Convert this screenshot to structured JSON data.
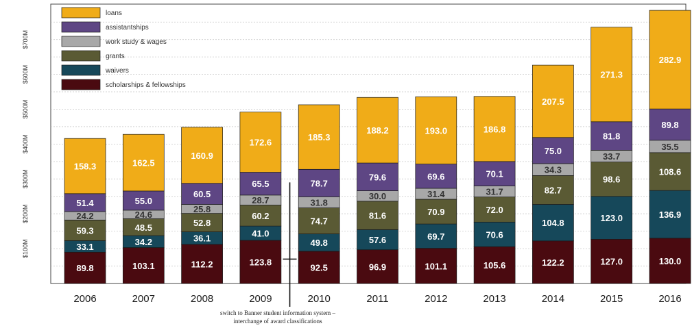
{
  "chart_data": {
    "type": "bar",
    "stacked": true,
    "title": "",
    "xlabel": "",
    "ylabel": "",
    "categories": [
      "2006",
      "2007",
      "2008",
      "2009",
      "2010",
      "2011",
      "2012",
      "2013",
      "2014",
      "2015",
      "2016"
    ],
    "y_ticks": [
      "$100M",
      "$200M",
      "$300M",
      "$400M",
      "$500M",
      "$600M",
      "$700M"
    ],
    "y_tick_values": [
      100,
      200,
      300,
      400,
      500,
      600,
      700
    ],
    "ylim": [
      0,
      780
    ],
    "grid": true,
    "legend_position": "top-left",
    "series": [
      {
        "name": "scholarships & fellowships",
        "color": "#4a0a10",
        "values": [
          89.8,
          103.1,
          112.2,
          123.8,
          92.5,
          96.9,
          101.1,
          105.6,
          122.2,
          127.0,
          130.0
        ]
      },
      {
        "name": "waivers",
        "color": "#16485a",
        "values": [
          33.1,
          34.2,
          36.1,
          41.0,
          49.8,
          57.6,
          69.7,
          70.6,
          104.8,
          123.0,
          136.9
        ]
      },
      {
        "name": "grants",
        "color": "#5a5a34",
        "values": [
          59.3,
          48.5,
          52.8,
          60.2,
          74.7,
          81.6,
          70.9,
          72.0,
          82.7,
          98.6,
          108.6
        ]
      },
      {
        "name": "work study & wages",
        "color": "#a8a8a8",
        "values": [
          24.2,
          24.6,
          25.8,
          28.7,
          31.8,
          30.0,
          31.4,
          31.7,
          34.3,
          33.7,
          35.5
        ]
      },
      {
        "name": "assistantships",
        "color": "#5e4684",
        "values": [
          51.4,
          55.0,
          60.5,
          65.5,
          78.7,
          79.6,
          69.6,
          70.1,
          75.0,
          81.8,
          89.8
        ]
      },
      {
        "name": "loans",
        "color": "#f0ac18",
        "values": [
          158.3,
          162.5,
          160.9,
          172.6,
          185.3,
          188.2,
          193.0,
          186.8,
          207.5,
          271.3,
          282.9
        ]
      }
    ],
    "labels": [
      [
        "89.8",
        "103.1",
        "112.2",
        "123.8",
        "92.5",
        "96.9",
        "101.1",
        "105.6",
        "122.2",
        "127.0",
        "130.0"
      ],
      [
        "33.1",
        "34.2",
        "36.1",
        "41.0",
        "49.8",
        "57.6",
        "69.7",
        "70.6",
        "104.8",
        "123.0",
        "136.9"
      ],
      [
        "59.3",
        "48.5",
        "52.8",
        "60.2",
        "74.7",
        "81.6",
        "70.9",
        "72.0",
        "82.7",
        "98.6",
        "108.6"
      ],
      [
        "24.2",
        "24.6",
        "25.8",
        "28.7",
        "31.8",
        "30.0",
        "31.4",
        "31.7",
        "34.3",
        "33.7",
        "35.5"
      ],
      [
        "51.4",
        "55.0",
        "60.5",
        "65.5",
        "78.7",
        "79.6",
        "69.6",
        "70.1",
        "75.0",
        "81.8",
        "89.8"
      ],
      [
        "158.3",
        "162.5",
        "160.9",
        "172.6",
        "185.3",
        "188.2",
        "193.0",
        "186.8",
        "207.5",
        "271.3",
        "282.9"
      ]
    ],
    "annotation": [
      "switch to Banner student information system –",
      "interchange of award classifications"
    ]
  }
}
